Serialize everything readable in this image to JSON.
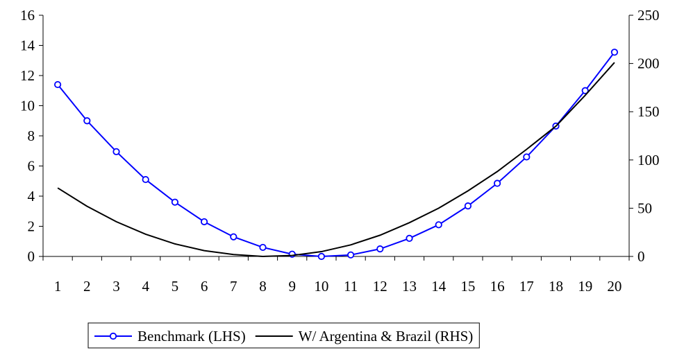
{
  "chart_data": {
    "type": "line",
    "x": [
      1,
      2,
      3,
      4,
      5,
      6,
      7,
      8,
      9,
      10,
      11,
      12,
      13,
      14,
      15,
      16,
      17,
      18,
      19,
      20
    ],
    "xticks": [
      "1",
      "2",
      "3",
      "4",
      "5",
      "6",
      "7",
      "8",
      "9",
      "10",
      "11",
      "12",
      "13",
      "14",
      "15",
      "16",
      "17",
      "18",
      "19",
      "20"
    ],
    "y_left": {
      "ylim": [
        0,
        16
      ],
      "ticks": [
        "0",
        "2",
        "4",
        "6",
        "8",
        "10",
        "12",
        "14",
        "16"
      ]
    },
    "y_right": {
      "ylim": [
        0,
        250
      ],
      "ticks": [
        "0",
        "50",
        "100",
        "150",
        "200",
        "250"
      ]
    },
    "grid": false,
    "legend_position": "bottom",
    "series": [
      {
        "name": "Benchmark (LHS)",
        "axis": "left",
        "color": "#0000ff",
        "marker": "circle",
        "values": [
          11.4,
          9.0,
          6.95,
          5.1,
          3.6,
          2.3,
          1.3,
          0.6,
          0.15,
          0.0,
          0.1,
          0.5,
          1.2,
          2.1,
          3.35,
          4.85,
          6.6,
          8.65,
          11.0,
          13.55
        ]
      },
      {
        "name": "W/ Argentina & Brazil (RHS)",
        "axis": "right",
        "color": "#000000",
        "marker": "none",
        "values": [
          71,
          52,
          36,
          23,
          13,
          6,
          2,
          0,
          1,
          5,
          12,
          22,
          35,
          50,
          68,
          88,
          111,
          135,
          167,
          201
        ]
      }
    ]
  }
}
